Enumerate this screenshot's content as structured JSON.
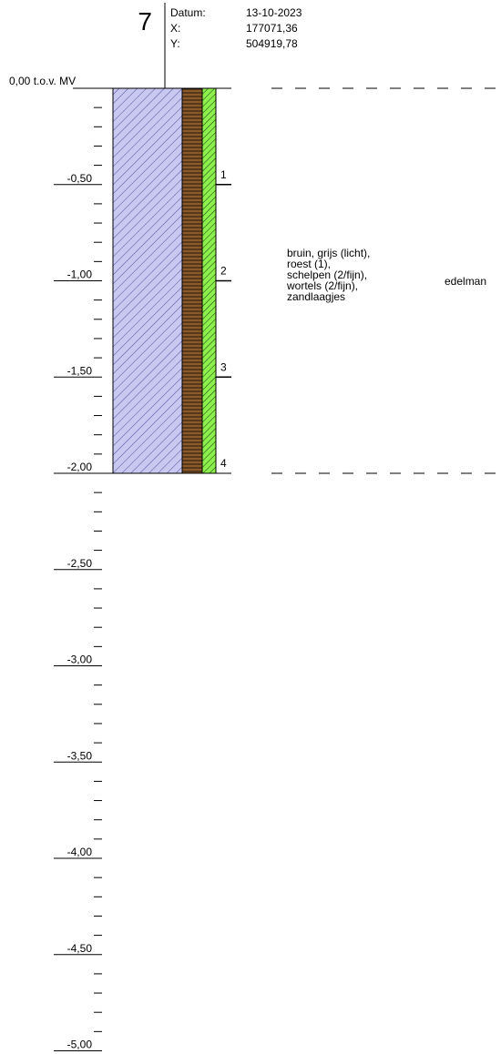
{
  "header": {
    "boring_number": "7",
    "datum_label": "Datum:",
    "datum_value": "13-10-2023",
    "x_label": "X:",
    "x_value": "177071,36",
    "y_label": "Y:",
    "y_value": "504919,78"
  },
  "surface_label": "0,00 t.o.v. MV",
  "depth_axis": {
    "min": 0,
    "max": -5.0,
    "major_step": 0.5,
    "minor_step": 0.1,
    "major_labels": [
      "-0,50",
      "-1,00",
      "-1,50",
      "-2,00",
      "-2,50",
      "-3,00",
      "-3,50",
      "-4,00",
      "-4,50",
      "-5,00"
    ]
  },
  "log_bottom_depth": -2.0,
  "columns": {
    "soil_color": "#c8c8f0",
    "organic_color": "#8b5a2b",
    "green_color": "#8cf04c"
  },
  "samples": [
    {
      "label": "1",
      "depth": -0.5
    },
    {
      "label": "2",
      "depth": -1.0
    },
    {
      "label": "3",
      "depth": -1.5
    },
    {
      "label": "4",
      "depth": -2.0
    }
  ],
  "description_lines": [
    "bruin, grijs (licht),",
    "roest (1),",
    "schelpen (2/fijn),",
    "wortels (2/fijn),",
    "zandlaagjes"
  ],
  "method": "edelman"
}
